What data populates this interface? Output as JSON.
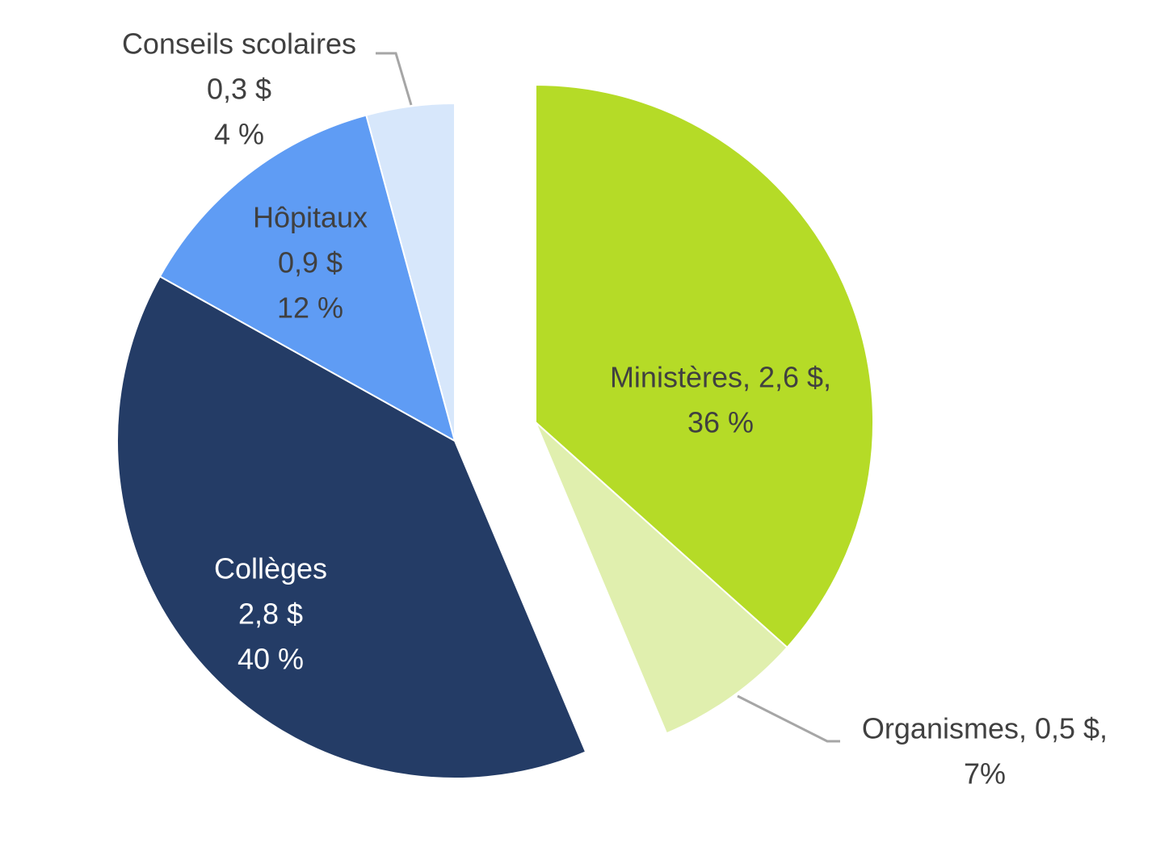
{
  "chart_data": {
    "type": "pie",
    "title": "",
    "unit": "$",
    "slices": [
      {
        "name": "Ministères",
        "value_text": "2,6 $",
        "value": 2.6,
        "percent": 36,
        "percent_text": "36 %",
        "color": "#b5db27",
        "label_lines": [
          "Ministères, 2,6 $,",
          "36 %"
        ]
      },
      {
        "name": "Organismes",
        "value_text": "0,5 $",
        "value": 0.5,
        "percent": 7,
        "percent_text": "7%",
        "color": "#e0efae",
        "label_lines": [
          "Organismes, 0,5 $,",
          "7%"
        ]
      },
      {
        "name": "Collèges",
        "value_text": "2,8 $",
        "value": 2.8,
        "percent": 40,
        "percent_text": "40 %",
        "color": "#243c66",
        "label_lines": [
          "Collèges",
          "2,8 $",
          "40 %"
        ]
      },
      {
        "name": "Hôpitaux",
        "value_text": "0,9 $",
        "value": 0.9,
        "percent": 12,
        "percent_text": "12 %",
        "color": "#5f9cf4",
        "label_lines": [
          "Hôpitaux",
          "0,9 $",
          "12 %"
        ]
      },
      {
        "name": "Conseils scolaires",
        "value_text": "0,3 $",
        "value": 0.3,
        "percent": 4,
        "percent_text": "4 %",
        "color": "#d7e7fb",
        "label_lines": [
          "Conseils scolaires",
          "0,3 $",
          "4 %"
        ]
      }
    ]
  }
}
